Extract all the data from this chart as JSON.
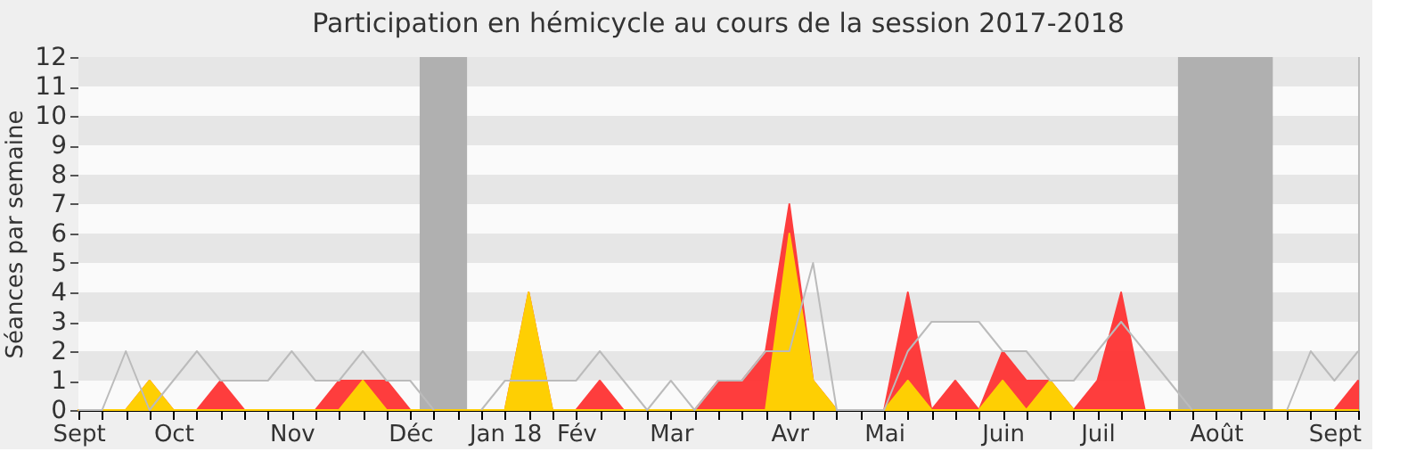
{
  "chart_data": {
    "type": "area",
    "title": "Participation en hémicycle au cours de la session 2017-2018",
    "ylabel": "Séances par semaine",
    "categories": [
      "Sept",
      null,
      null,
      null,
      "Oct",
      null,
      null,
      null,
      null,
      "Nov",
      null,
      null,
      null,
      null,
      "Déc",
      null,
      null,
      null,
      "Jan 18",
      null,
      null,
      "Fév",
      null,
      null,
      null,
      "Mar",
      null,
      null,
      null,
      null,
      "Avr",
      null,
      null,
      null,
      "Mai",
      null,
      null,
      null,
      null,
      "Juin",
      null,
      null,
      null,
      "Juil",
      null,
      null,
      null,
      null,
      "Août",
      null,
      null,
      null,
      null,
      "Sept",
      null
    ],
    "series": [
      {
        "color": "#ff3333",
        "values": [
          0,
          0,
          0,
          1,
          0,
          0,
          1,
          0,
          0,
          0,
          0,
          1,
          1,
          1,
          0,
          0,
          0,
          0,
          0,
          4,
          0,
          0,
          1,
          0,
          0,
          0,
          0,
          1,
          1,
          2,
          7,
          1,
          0,
          0,
          0,
          4,
          0,
          1,
          0,
          2,
          1,
          1,
          0,
          1,
          4,
          0,
          0,
          0,
          0,
          0,
          0,
          0,
          0,
          0,
          1
        ]
      },
      {
        "color": "#ffd700",
        "values": [
          0,
          0,
          0,
          1,
          0,
          0,
          0,
          0,
          0,
          0,
          0,
          0,
          1,
          0,
          0,
          0,
          0,
          0,
          0,
          4,
          0,
          0,
          0,
          0,
          0,
          0,
          0,
          0,
          0,
          0,
          6,
          1,
          0,
          0,
          0,
          1,
          0,
          0,
          0,
          1,
          0,
          1,
          0,
          0,
          0,
          0,
          0,
          0,
          0,
          0,
          0,
          0,
          0,
          0,
          0
        ]
      },
      {
        "type": "line",
        "color": "#bbbbbb",
        "values": [
          0,
          0,
          2,
          0,
          1,
          2,
          1,
          1,
          1,
          2,
          1,
          1,
          2,
          1,
          1,
          0,
          null,
          0,
          1,
          1,
          1,
          1,
          2,
          1,
          0,
          1,
          0,
          1,
          1,
          2,
          2,
          5,
          0,
          0,
          0,
          2,
          3,
          3,
          3,
          2,
          2,
          1,
          1,
          2,
          3,
          2,
          1,
          0,
          null,
          null,
          null,
          0,
          2,
          1,
          2
        ]
      }
    ],
    "ylim": [
      0,
      12
    ],
    "yticks": [
      0,
      1,
      2,
      3,
      4,
      5,
      6,
      7,
      8,
      9,
      10,
      11,
      12
    ]
  }
}
